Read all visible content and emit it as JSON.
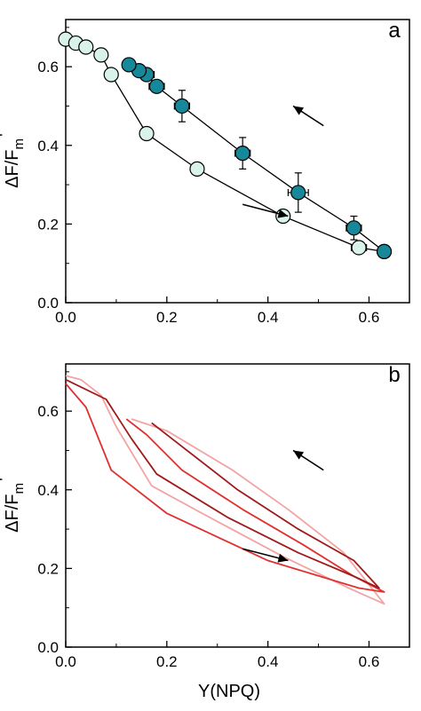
{
  "chart_data": [
    {
      "panel": "a",
      "type": "scatter",
      "xlabel": "",
      "ylabel": "ΔF/Fm'",
      "xlim": [
        0.0,
        0.68
      ],
      "ylim": [
        0.0,
        0.72
      ],
      "xticks": [
        "0.0",
        "0.2",
        "0.4",
        "0.6"
      ],
      "yticks": [
        "0.0",
        "0.2",
        "0.4",
        "0.6"
      ],
      "series": [
        {
          "color": "#d9f2ea",
          "connected": true,
          "points": [
            {
              "x": 0.0,
              "y": 0.67
            },
            {
              "x": 0.02,
              "y": 0.66
            },
            {
              "x": 0.04,
              "y": 0.65
            },
            {
              "x": 0.07,
              "y": 0.63
            },
            {
              "x": 0.09,
              "y": 0.58
            },
            {
              "x": 0.16,
              "y": 0.43,
              "xerr": 0.01
            },
            {
              "x": 0.26,
              "y": 0.34,
              "xerr": 0.01
            },
            {
              "x": 0.43,
              "y": 0.22
            },
            {
              "x": 0.58,
              "y": 0.14,
              "xerr": 0.015
            },
            {
              "x": 0.63,
              "y": 0.13
            }
          ]
        },
        {
          "color": "#17889a",
          "connected": true,
          "points": [
            {
              "x": 0.63,
              "y": 0.13
            },
            {
              "x": 0.57,
              "y": 0.19,
              "xerr": 0.015,
              "yerr": 0.03
            },
            {
              "x": 0.46,
              "y": 0.28,
              "xerr": 0.02,
              "yerr": 0.05
            },
            {
              "x": 0.35,
              "y": 0.38,
              "xerr": 0.015,
              "yerr": 0.04
            },
            {
              "x": 0.23,
              "y": 0.5,
              "xerr": 0.015,
              "yerr": 0.04
            },
            {
              "x": 0.18,
              "y": 0.55,
              "xerr": 0.015
            },
            {
              "x": 0.16,
              "y": 0.58,
              "xerr": 0.015
            },
            {
              "x": 0.145,
              "y": 0.59
            },
            {
              "x": 0.125,
              "y": 0.605
            }
          ]
        }
      ],
      "arrows": [
        {
          "from": [
            0.51,
            0.45
          ],
          "to": [
            0.45,
            0.5
          ]
        },
        {
          "from": [
            0.35,
            0.25
          ],
          "to": [
            0.44,
            0.22
          ]
        }
      ]
    },
    {
      "panel": "b",
      "type": "line",
      "xlabel": "Y(NPQ)",
      "ylabel": "ΔF/Fm'",
      "xlim": [
        0.0,
        0.68
      ],
      "ylim": [
        0.0,
        0.72
      ],
      "xticks": [
        "0.0",
        "0.2",
        "0.4",
        "0.6"
      ],
      "yticks": [
        "0.0",
        "0.2",
        "0.4",
        "0.6"
      ],
      "series": [
        {
          "color": "#f4a3a3",
          "points": [
            [
              0.0,
              0.69
            ],
            [
              0.03,
              0.68
            ],
            [
              0.07,
              0.64
            ],
            [
              0.1,
              0.56
            ],
            [
              0.17,
              0.41
            ],
            [
              0.27,
              0.34
            ],
            [
              0.43,
              0.23
            ],
            [
              0.56,
              0.15
            ],
            [
              0.63,
              0.11
            ],
            [
              0.55,
              0.24
            ],
            [
              0.44,
              0.35
            ],
            [
              0.33,
              0.45
            ],
            [
              0.2,
              0.55
            ],
            [
              0.13,
              0.58
            ]
          ]
        },
        {
          "color": "#e03030",
          "points": [
            [
              0.0,
              0.67
            ],
            [
              0.04,
              0.61
            ],
            [
              0.09,
              0.45
            ],
            [
              0.2,
              0.34
            ],
            [
              0.4,
              0.22
            ],
            [
              0.58,
              0.15
            ],
            [
              0.63,
              0.14
            ],
            [
              0.57,
              0.18
            ],
            [
              0.47,
              0.26
            ],
            [
              0.35,
              0.35
            ],
            [
              0.23,
              0.45
            ],
            [
              0.16,
              0.54
            ],
            [
              0.12,
              0.58
            ]
          ]
        },
        {
          "color": "#a01a1a",
          "points": [
            [
              0.0,
              0.68
            ],
            [
              0.08,
              0.63
            ],
            [
              0.13,
              0.53
            ],
            [
              0.18,
              0.44
            ],
            [
              0.32,
              0.33
            ],
            [
              0.46,
              0.24
            ],
            [
              0.57,
              0.18
            ],
            [
              0.62,
              0.15
            ],
            [
              0.57,
              0.22
            ],
            [
              0.46,
              0.3
            ],
            [
              0.34,
              0.4
            ],
            [
              0.23,
              0.51
            ],
            [
              0.17,
              0.57
            ]
          ]
        }
      ],
      "arrows": [
        {
          "from": [
            0.51,
            0.45
          ],
          "to": [
            0.45,
            0.5
          ]
        },
        {
          "from": [
            0.35,
            0.25
          ],
          "to": [
            0.44,
            0.22
          ]
        }
      ]
    }
  ],
  "panels": [
    {
      "label": "a"
    },
    {
      "label": "b"
    }
  ],
  "labels": {
    "ylabel_main": "ΔF/F",
    "ylabel_sub": "m",
    "ylabel_prime": "'",
    "xlabel_b": "Y(NPQ)"
  }
}
